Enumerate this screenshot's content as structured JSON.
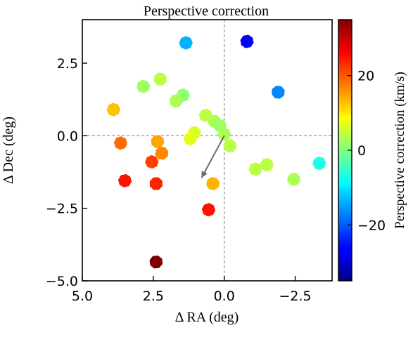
{
  "chart_data": {
    "type": "scatter",
    "title": "Perspective correction",
    "xlabel": "Δ RA (deg)",
    "ylabel": "Δ Dec (deg)",
    "xlim": [
      5.0,
      -3.8
    ],
    "ylim": [
      -5.0,
      4.0
    ],
    "xticks": [
      5.0,
      2.5,
      0.0,
      -2.5
    ],
    "xtick_labels": [
      "5.0",
      "2.5",
      "0.0",
      "−2.5"
    ],
    "yticks": [
      2.5,
      0.0,
      -2.5,
      -5.0
    ],
    "ytick_labels": [
      "2.5",
      "0.0",
      "−2.5",
      "−5.0"
    ],
    "x_inverted": true,
    "grid": false,
    "reference_lines": {
      "x": 0.0,
      "y": 0.0,
      "style": "dashed"
    },
    "colorbar": {
      "label": "Perspective correction (km/s)",
      "colormap": "jet",
      "range": [
        -35,
        35
      ],
      "ticks": [
        20,
        0,
        -20
      ],
      "tick_labels": [
        "20",
        "0",
        "−20"
      ]
    },
    "arrow": {
      "from": [
        0.0,
        0.0
      ],
      "to": [
        0.8,
        -1.45
      ],
      "color": "#6b6b6b"
    },
    "clusters": [
      {
        "x": 1.35,
        "y": 3.2,
        "v": -14
      },
      {
        "x": -0.8,
        "y": 3.25,
        "v": -27
      },
      {
        "x": 2.25,
        "y": 1.95,
        "v": 4
      },
      {
        "x": 2.85,
        "y": 1.7,
        "v": 2
      },
      {
        "x": 1.45,
        "y": 1.4,
        "v": 1
      },
      {
        "x": 1.7,
        "y": 1.2,
        "v": 3
      },
      {
        "x": -1.9,
        "y": 1.5,
        "v": -17
      },
      {
        "x": 3.9,
        "y": 0.9,
        "v": 13
      },
      {
        "x": 0.65,
        "y": 0.7,
        "v": 4
      },
      {
        "x": 0.35,
        "y": 0.5,
        "v": 3
      },
      {
        "x": 0.15,
        "y": 0.35,
        "v": 2
      },
      {
        "x": 0.0,
        "y": 0.05,
        "v": 3
      },
      {
        "x": -0.2,
        "y": -0.35,
        "v": 4
      },
      {
        "x": 1.05,
        "y": 0.1,
        "v": 6
      },
      {
        "x": 1.2,
        "y": -0.1,
        "v": 7
      },
      {
        "x": 3.65,
        "y": -0.25,
        "v": 19
      },
      {
        "x": 2.35,
        "y": -0.2,
        "v": 15
      },
      {
        "x": 2.2,
        "y": -0.6,
        "v": 17
      },
      {
        "x": 2.55,
        "y": -0.9,
        "v": 22
      },
      {
        "x": 3.5,
        "y": -1.55,
        "v": 25
      },
      {
        "x": 2.4,
        "y": -1.65,
        "v": 24
      },
      {
        "x": 0.4,
        "y": -1.65,
        "v": 14
      },
      {
        "x": -1.1,
        "y": -1.15,
        "v": 4
      },
      {
        "x": -1.5,
        "y": -1.0,
        "v": 4
      },
      {
        "x": -2.45,
        "y": -1.5,
        "v": 3
      },
      {
        "x": -3.35,
        "y": -0.95,
        "v": -7
      },
      {
        "x": 0.55,
        "y": -2.55,
        "v": 25
      },
      {
        "x": 2.4,
        "y": -4.35,
        "v": 35
      }
    ]
  }
}
